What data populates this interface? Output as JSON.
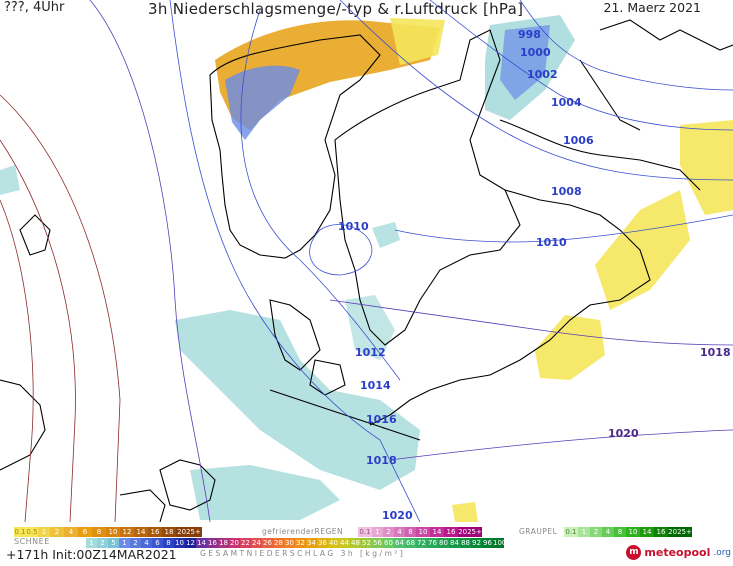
{
  "header": {
    "left": "???, 4Uhr",
    "title": "3h Niederschlagsmenge/-typ & r.Luftdruck [hPa]",
    "date": "21. Maerz 2021"
  },
  "isobar_labels": [
    "998",
    "1000",
    "1002",
    "1004",
    "1006",
    "1008",
    "1010",
    "1010",
    "1012",
    "1014",
    "1016",
    "1018",
    "1020",
    "1018",
    "1020"
  ],
  "legend": {
    "snow_label": "SCHNEE",
    "rain_scale": [
      "0.1",
      "0.5",
      "1",
      "2",
      "4",
      "6",
      "8",
      "10",
      "12",
      "14",
      "16",
      "18",
      "2025+"
    ],
    "freezing_label": "gefrierenderREGEN",
    "freezing_scale": [
      "0.1",
      "1",
      "2",
      "4",
      "8",
      "10",
      "14",
      "16",
      "2025+"
    ],
    "graupel_label": "GRAUPEL",
    "graupel_scale": [
      "0.1",
      "1",
      "2",
      "4",
      "8",
      "10",
      "14",
      "16",
      "2025+"
    ],
    "snow_scale": [
      "1",
      "2",
      "5",
      "1",
      "2",
      "4",
      "6",
      "8",
      "10",
      "12",
      "14",
      "16",
      "18",
      "20",
      "22",
      "24",
      "26",
      "28",
      "30",
      "32",
      "34",
      "36",
      "40",
      "44",
      "48",
      "52",
      "56",
      "60",
      "64",
      "68",
      "72",
      "76",
      "80",
      "84",
      "88",
      "92",
      "96",
      "100"
    ],
    "total_label": "GESAMTNIEDERSCHLAG 3h [kg/m²]"
  },
  "run": "+171h Init:00Z14MAR2021",
  "brand": {
    "name": "meteopool",
    "tld": ".org"
  },
  "colors": {
    "rain_low": "#f5e65a",
    "rain_high": "#e8a010",
    "snow_light": "#a8dcdc",
    "snow_blue": "#6a8be8",
    "isobar": "#3a4fd0",
    "isobar_high": "#8b2a2a"
  }
}
